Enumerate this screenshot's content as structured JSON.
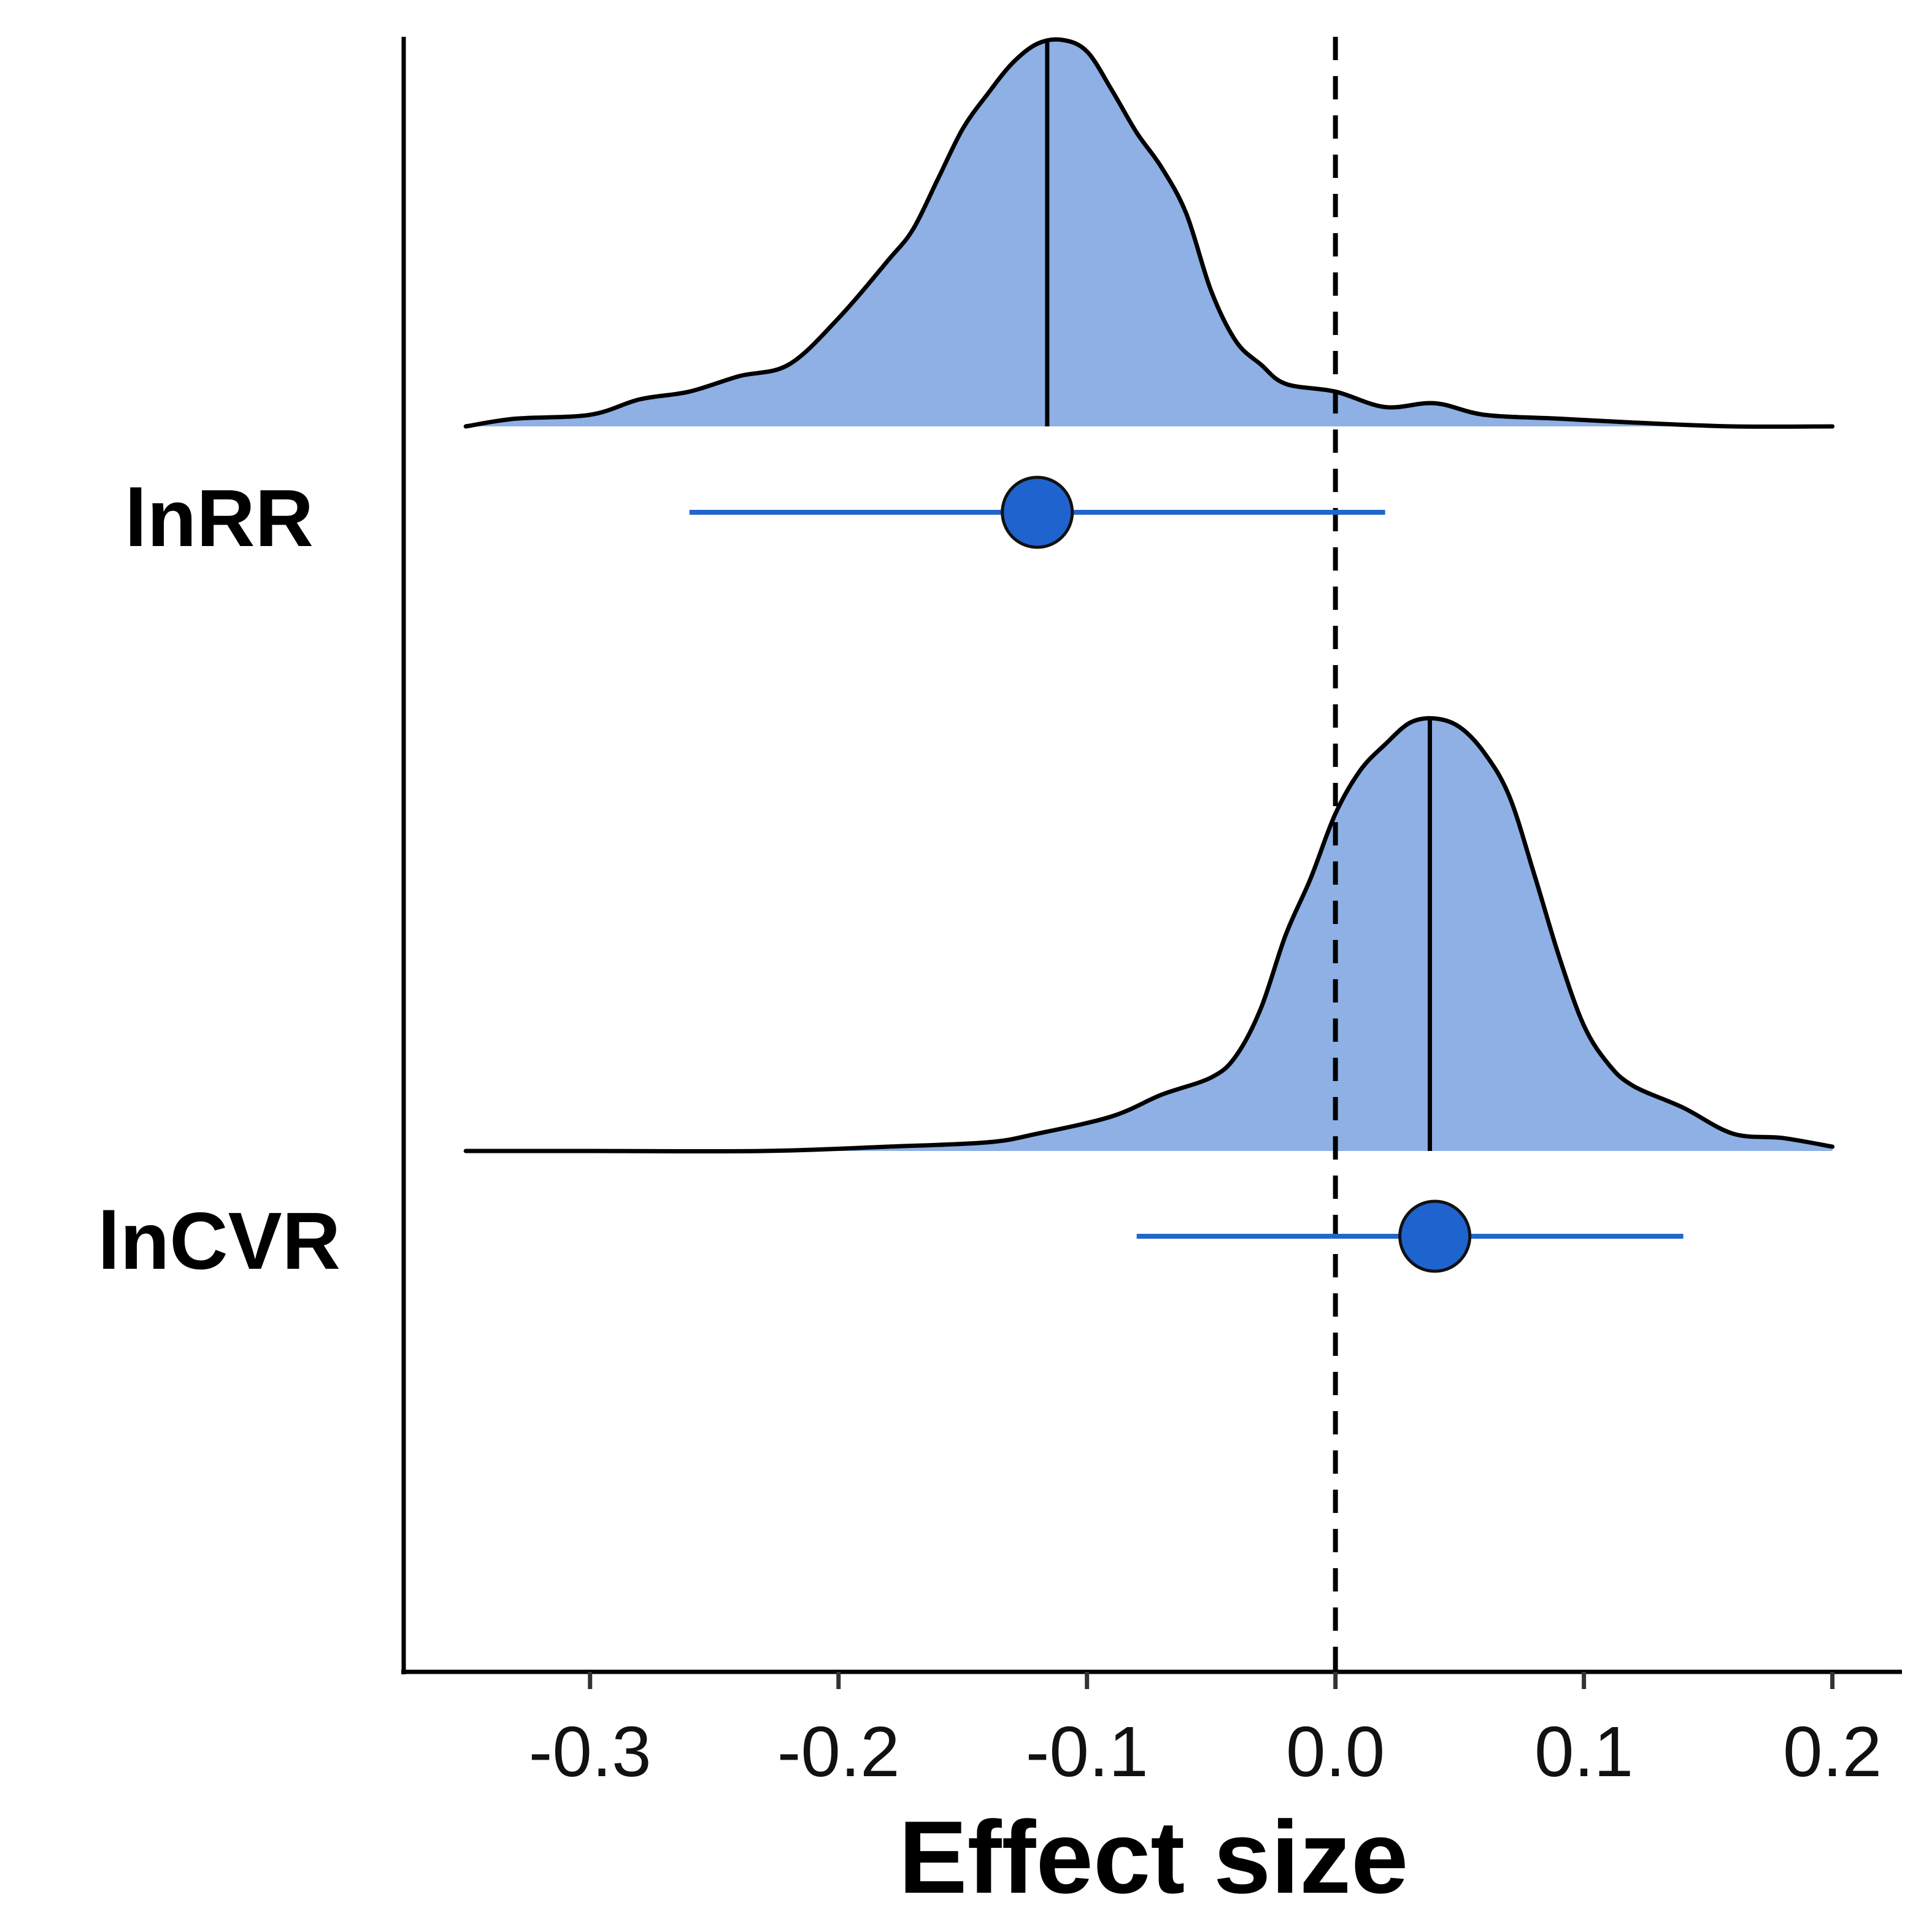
{
  "chart_data": {
    "type": "ridgeline-forest",
    "xlabel": "Effect size",
    "ylabel": "",
    "xlim": [
      -0.375,
      0.228
    ],
    "x_ticks": [
      -0.3,
      -0.2,
      -0.1,
      0.0,
      0.1,
      0.2
    ],
    "x_tick_labels": [
      "-0.3",
      "-0.2",
      "-0.1",
      "0.0",
      "0.1",
      "0.2"
    ],
    "reference_line": 0.0,
    "grid": false,
    "legend": "none",
    "fill_color": "#8eb0e4",
    "point_color": "#1f63cf",
    "interval_color": "#2266cc",
    "outline_color": "#000000",
    "categories": [
      "lnRR",
      "lnCVR"
    ],
    "series": [
      {
        "category": "lnRR",
        "estimate": -0.12,
        "ci": [
          -0.26,
          0.02
        ],
        "density_mode": -0.116,
        "density": [
          [
            -0.35,
            0.0
          ],
          [
            -0.33,
            0.02
          ],
          [
            -0.3,
            0.03
          ],
          [
            -0.28,
            0.07
          ],
          [
            -0.26,
            0.09
          ],
          [
            -0.24,
            0.13
          ],
          [
            -0.22,
            0.16
          ],
          [
            -0.2,
            0.28
          ],
          [
            -0.18,
            0.43
          ],
          [
            -0.17,
            0.51
          ],
          [
            -0.16,
            0.64
          ],
          [
            -0.15,
            0.77
          ],
          [
            -0.14,
            0.86
          ],
          [
            -0.13,
            0.94
          ],
          [
            -0.12,
            0.99
          ],
          [
            -0.11,
            1.0
          ],
          [
            -0.1,
            0.97
          ],
          [
            -0.09,
            0.87
          ],
          [
            -0.08,
            0.76
          ],
          [
            -0.07,
            0.67
          ],
          [
            -0.06,
            0.55
          ],
          [
            -0.05,
            0.35
          ],
          [
            -0.04,
            0.22
          ],
          [
            -0.03,
            0.16
          ],
          [
            -0.02,
            0.11
          ],
          [
            0.0,
            0.09
          ],
          [
            0.02,
            0.05
          ],
          [
            0.04,
            0.06
          ],
          [
            0.06,
            0.03
          ],
          [
            0.09,
            0.02
          ],
          [
            0.12,
            0.01
          ],
          [
            0.16,
            0.0
          ],
          [
            0.2,
            0.0
          ]
        ]
      },
      {
        "category": "lnCVR",
        "estimate": 0.04,
        "ci": [
          -0.08,
          0.14
        ],
        "density_mode": 0.038,
        "density": [
          [
            -0.35,
            0.0
          ],
          [
            -0.3,
            0.0
          ],
          [
            -0.23,
            0.0
          ],
          [
            -0.18,
            0.01
          ],
          [
            -0.14,
            0.02
          ],
          [
            -0.12,
            0.04
          ],
          [
            -0.09,
            0.08
          ],
          [
            -0.07,
            0.13
          ],
          [
            -0.05,
            0.17
          ],
          [
            -0.04,
            0.22
          ],
          [
            -0.03,
            0.33
          ],
          [
            -0.02,
            0.5
          ],
          [
            -0.01,
            0.63
          ],
          [
            0.0,
            0.78
          ],
          [
            0.01,
            0.88
          ],
          [
            0.02,
            0.94
          ],
          [
            0.03,
            0.99
          ],
          [
            0.04,
            1.0
          ],
          [
            0.05,
            0.98
          ],
          [
            0.06,
            0.92
          ],
          [
            0.07,
            0.82
          ],
          [
            0.08,
            0.64
          ],
          [
            0.09,
            0.45
          ],
          [
            0.1,
            0.29
          ],
          [
            0.11,
            0.2
          ],
          [
            0.12,
            0.15
          ],
          [
            0.14,
            0.1
          ],
          [
            0.16,
            0.04
          ],
          [
            0.18,
            0.03
          ],
          [
            0.2,
            0.01
          ]
        ]
      }
    ]
  }
}
